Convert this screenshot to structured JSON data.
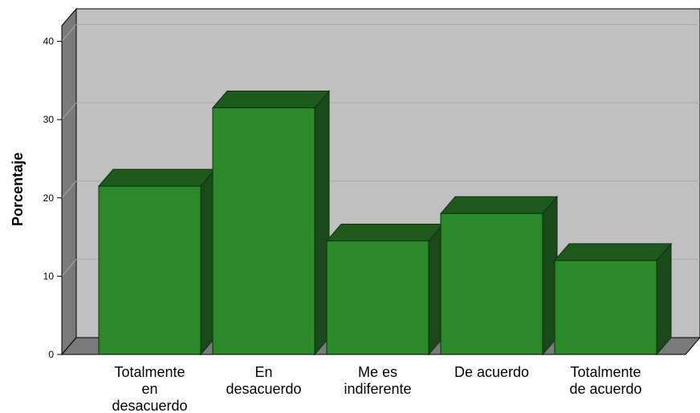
{
  "chart_data": {
    "type": "bar",
    "three_d": true,
    "categories": [
      [
        "Totalmente",
        "en",
        "desacuerdo"
      ],
      [
        "En",
        "desacuerdo"
      ],
      [
        "Me es",
        "indiferente"
      ],
      [
        "De acuerdo"
      ],
      [
        "Totalmente",
        "de acuerdo"
      ]
    ],
    "values": [
      21.5,
      31.5,
      14.5,
      18,
      12
    ],
    "ylabel": "Porcentaje",
    "xlabel": "",
    "yticks": [
      0,
      10,
      20,
      30,
      40
    ],
    "ylim": [
      0,
      42
    ],
    "grid": true,
    "colors": {
      "bar_front": "#2a8a2a",
      "bar_top": "#1e5a1e",
      "bar_side": "#1a4a1a",
      "back_wall": "#c0c0c0",
      "side_wall": "#7a7a7a",
      "floor": "#7a7a7a",
      "gridline": "#a8a8a8"
    }
  }
}
